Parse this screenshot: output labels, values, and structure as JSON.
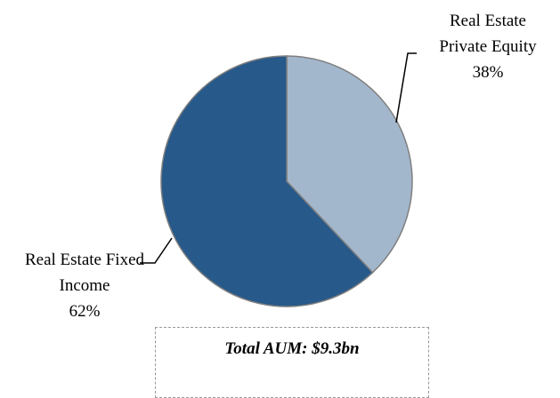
{
  "chart_data": {
    "type": "pie",
    "categories": [
      "Real Estate Private Equity",
      "Real Estate Fixed Income"
    ],
    "values": [
      38,
      62
    ],
    "value_labels": [
      "38%",
      "62%"
    ],
    "colors": [
      "#a3b7cc",
      "#27598a"
    ],
    "annotation": "Total AUM: $9.3bn"
  }
}
